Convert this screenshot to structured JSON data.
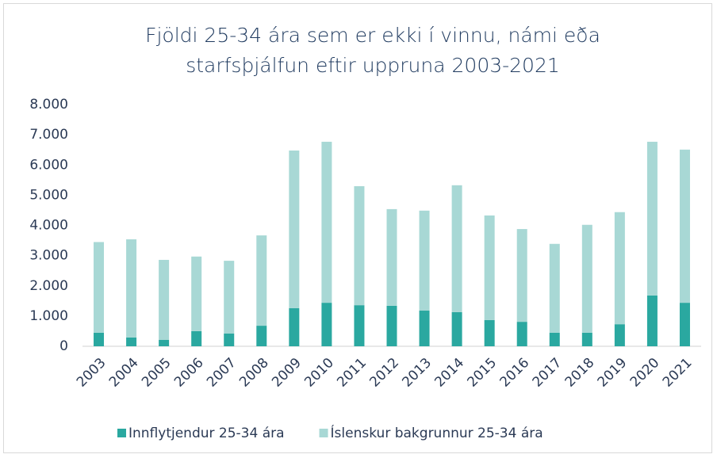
{
  "chart_data": {
    "type": "stacked_bar",
    "title": "Fjöldi 25-34 ára sem er ekki í vinnu, námi eða starfsþjálfun eftir uppruna 2003-2021",
    "categories": [
      "2003",
      "2004",
      "2005",
      "2006",
      "2007",
      "2008",
      "2009",
      "2010",
      "2011",
      "2012",
      "2013",
      "2014",
      "2015",
      "2016",
      "2017",
      "2018",
      "2019",
      "2020",
      "2021"
    ],
    "series": [
      {
        "name": "Innflytjendur 25-34 ára",
        "color": "#2aa8a0",
        "values": [
          450,
          290,
          210,
          500,
          420,
          680,
          1260,
          1440,
          1360,
          1340,
          1180,
          1130,
          870,
          810,
          450,
          450,
          730,
          1680,
          1440
        ]
      },
      {
        "name": "Íslenskur bakgrunnur 25-34 ára",
        "color": "#a8d8d5",
        "values": [
          3000,
          3250,
          2650,
          2470,
          2410,
          2990,
          5220,
          5330,
          3940,
          3200,
          3310,
          4200,
          3460,
          3070,
          2940,
          3570,
          3710,
          5090,
          5070
        ]
      }
    ],
    "ylim": [
      0,
      8000
    ],
    "yticks": [
      0,
      {
        "value": 1000,
        "label": "1.000"
      },
      {
        "value": 2000,
        "label": "2.000"
      },
      {
        "value": 3000,
        "label": "3.000"
      },
      {
        "value": 4000,
        "label": "4.000"
      },
      {
        "value": 5000,
        "label": "5.000"
      },
      {
        "value": 6000,
        "label": "6.000"
      },
      {
        "value": 7000,
        "label": "7.000"
      },
      {
        "value": 8000,
        "label": "8.000"
      }
    ],
    "legend": "bottom"
  }
}
